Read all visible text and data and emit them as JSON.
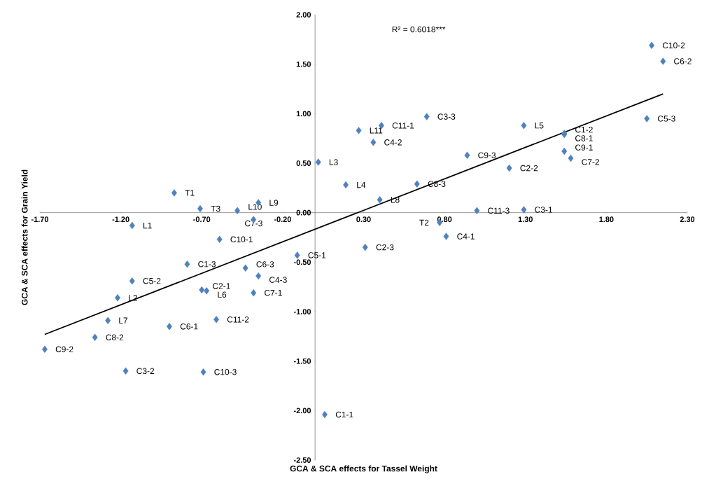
{
  "chart_data": {
    "type": "scatter",
    "xlabel": "GCA & SCA effects for Tassel Weight",
    "ylabel": "GCA & SCA effects for Grain Yield",
    "xlim": [
      -1.7,
      2.3
    ],
    "ylim": [
      -2.5,
      2.0
    ],
    "xticks": [
      {
        "value": -1.7,
        "label": "-1.70"
      },
      {
        "value": -1.2,
        "label": "-1.20"
      },
      {
        "value": -0.7,
        "label": "-0.70"
      },
      {
        "value": -0.2,
        "label": "-0.20"
      },
      {
        "value": 0.3,
        "label": "0.30"
      },
      {
        "value": 0.8,
        "label": "0.80"
      },
      {
        "value": 1.3,
        "label": "1.30"
      },
      {
        "value": 1.8,
        "label": "1.80"
      },
      {
        "value": 2.3,
        "label": "2.30"
      }
    ],
    "yticks": [
      {
        "value": -2.5,
        "label": "-2.50"
      },
      {
        "value": -2.0,
        "label": "-2.00"
      },
      {
        "value": -1.5,
        "label": "-1.50"
      },
      {
        "value": -1.0,
        "label": "-1.00"
      },
      {
        "value": -0.5,
        "label": "-0.50"
      },
      {
        "value": 0.0,
        "label": "0.00"
      },
      {
        "value": 0.5,
        "label": "0.50"
      },
      {
        "value": 1.0,
        "label": "1.00"
      },
      {
        "value": 1.5,
        "label": "1.50"
      },
      {
        "value": 2.0,
        "label": "2.00"
      }
    ],
    "grid": false,
    "series": [
      {
        "marker": "diamond",
        "color": "#4f81bd",
        "x": [
          2.08,
          2.15,
          2.05,
          1.54,
          1.54,
          1.54,
          1.58,
          1.29,
          1.2,
          0.94,
          0.63,
          0.69,
          0.41,
          0.27,
          0.36,
          0.02,
          0.19,
          0.4,
          1.0,
          1.29,
          0.77,
          0.81,
          0.31,
          -0.87,
          -0.71,
          -0.48,
          -0.35,
          -0.38,
          -1.13,
          -0.59,
          -0.79,
          -1.13,
          -0.43,
          -0.35,
          -0.11,
          -0.7,
          -0.67,
          -0.38,
          -1.22,
          -1.28,
          -0.9,
          -0.61,
          -1.36,
          -1.67,
          -1.17,
          -0.69,
          0.06
        ],
        "values": [
          1.69,
          1.53,
          0.95,
          0.8,
          0.79,
          0.62,
          0.55,
          0.88,
          0.45,
          0.58,
          0.29,
          0.97,
          0.88,
          0.83,
          0.71,
          0.51,
          0.28,
          0.13,
          0.02,
          0.03,
          -0.1,
          -0.24,
          -0.35,
          0.2,
          0.04,
          0.02,
          0.1,
          -0.07,
          -0.13,
          -0.27,
          -0.52,
          -0.69,
          -0.56,
          -0.64,
          -0.43,
          -0.78,
          -0.79,
          -0.81,
          -0.86,
          -1.09,
          -1.15,
          -1.08,
          -1.26,
          -1.38,
          -1.6,
          -1.61,
          -2.04
        ]
      },
      {
        "type": "line",
        "color": "#000000",
        "x": [
          -1.67,
          2.15
        ],
        "values": [
          -1.23,
          1.2
        ]
      }
    ],
    "annotations": [
      "R² = 0.6018***",
      {
        "text": "C10-2",
        "x": 2.08,
        "y": 1.69
      },
      {
        "text": "C6-2",
        "x": 2.15,
        "y": 1.53
      },
      {
        "text": "C5-3",
        "x": 2.05,
        "y": 0.95
      },
      {
        "text": "C1-2",
        "x": 1.54,
        "y": 0.8
      },
      {
        "text": "C8-1",
        "x": 1.54,
        "y": 0.79
      },
      {
        "text": "C9-1",
        "x": 1.54,
        "y": 0.62
      },
      {
        "text": "C7-2",
        "x": 1.58,
        "y": 0.55
      },
      {
        "text": "L5",
        "x": 1.29,
        "y": 0.88
      },
      {
        "text": "C2-2",
        "x": 1.2,
        "y": 0.45
      },
      {
        "text": "C9-3",
        "x": 0.94,
        "y": 0.58
      },
      {
        "text": "C8-3",
        "x": 0.63,
        "y": 0.29
      },
      {
        "text": "C3-3",
        "x": 0.69,
        "y": 0.97
      },
      {
        "text": "C11-1",
        "x": 0.41,
        "y": 0.88
      },
      {
        "text": "L11",
        "x": 0.27,
        "y": 0.83
      },
      {
        "text": "C4-2",
        "x": 0.36,
        "y": 0.71
      },
      {
        "text": "L3",
        "x": 0.02,
        "y": 0.51
      },
      {
        "text": "L4",
        "x": 0.19,
        "y": 0.28
      },
      {
        "text": "L8",
        "x": 0.4,
        "y": 0.13
      },
      {
        "text": "C11-3",
        "x": 1.0,
        "y": 0.02
      },
      {
        "text": "C3-1",
        "x": 1.29,
        "y": 0.03
      },
      {
        "text": "T2",
        "x": 0.77,
        "y": -0.1
      },
      {
        "text": "C4-1",
        "x": 0.81,
        "y": -0.24
      },
      {
        "text": "C2-3",
        "x": 0.31,
        "y": -0.35
      },
      {
        "text": "T1",
        "x": -0.87,
        "y": 0.2
      },
      {
        "text": "T3",
        "x": -0.71,
        "y": 0.04
      },
      {
        "text": "L10",
        "x": -0.48,
        "y": 0.02
      },
      {
        "text": "L9",
        "x": -0.35,
        "y": 0.1
      },
      {
        "text": "C7-3",
        "x": -0.38,
        "y": -0.07
      },
      {
        "text": "L1",
        "x": -1.13,
        "y": -0.13
      },
      {
        "text": "C10-1",
        "x": -0.59,
        "y": -0.27
      },
      {
        "text": "C1-3",
        "x": -0.79,
        "y": -0.52
      },
      {
        "text": "C5-2",
        "x": -1.13,
        "y": -0.69
      },
      {
        "text": "C6-3",
        "x": -0.43,
        "y": -0.56
      },
      {
        "text": "C4-3",
        "x": -0.35,
        "y": -0.64
      },
      {
        "text": "C5-1",
        "x": -0.11,
        "y": -0.43
      },
      {
        "text": "C2-1",
        "x": -0.7,
        "y": -0.78
      },
      {
        "text": "L6",
        "x": -0.67,
        "y": -0.79
      },
      {
        "text": "C7-1",
        "x": -0.38,
        "y": -0.81
      },
      {
        "text": "L2",
        "x": -1.22,
        "y": -0.86
      },
      {
        "text": "L7",
        "x": -1.28,
        "y": -1.09
      },
      {
        "text": "C6-1",
        "x": -0.9,
        "y": -1.15
      },
      {
        "text": "C11-2",
        "x": -0.61,
        "y": -1.08
      },
      {
        "text": "C8-2",
        "x": -1.36,
        "y": -1.26
      },
      {
        "text": "C9-2",
        "x": -1.67,
        "y": -1.38
      },
      {
        "text": "C3-2",
        "x": -1.17,
        "y": -1.6
      },
      {
        "text": "C10-3",
        "x": -0.69,
        "y": -1.61
      },
      {
        "text": "C1-1",
        "x": 0.06,
        "y": -2.04
      }
    ]
  }
}
